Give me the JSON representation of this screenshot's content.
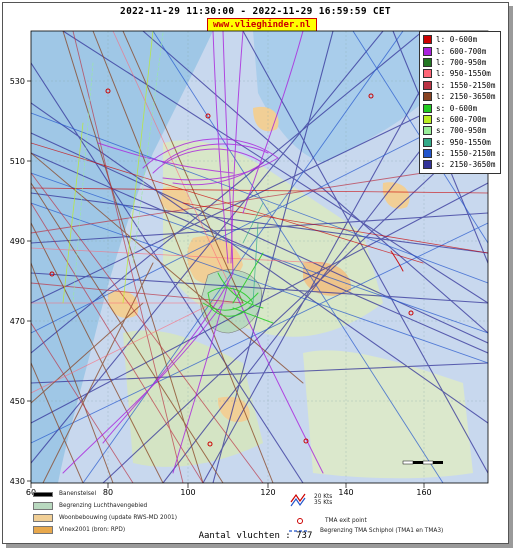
{
  "header": {
    "timestamp": "2022-11-29 11:30:00 - 2022-11-29 16:59:59 CET",
    "site": "www.vlieghinder.nl"
  },
  "axes": {
    "x_ticks": [
      "60",
      "80",
      "100",
      "120",
      "140",
      "160"
    ],
    "y_ticks": [
      "530",
      "510",
      "490",
      "470",
      "450",
      "430"
    ]
  },
  "legend": {
    "items": [
      {
        "label": "l: 0-600m",
        "color": "#cc0000"
      },
      {
        "label": "l: 600-700m",
        "color": "#aa22dd"
      },
      {
        "label": "l: 700-950m",
        "color": "#227722"
      },
      {
        "label": "l: 950-1550m",
        "color": "#ff6677"
      },
      {
        "label": "l: 1550-2150m",
        "color": "#bb3344"
      },
      {
        "label": "l: 2150-3650m",
        "color": "#884422"
      },
      {
        "label": "s: 0-600m",
        "color": "#22cc22"
      },
      {
        "label": "s: 600-700m",
        "color": "#bbee22"
      },
      {
        "label": "s: 700-950m",
        "color": "#99ee99"
      },
      {
        "label": "s: 950-1550m",
        "color": "#33aa88"
      },
      {
        "label": "s: 1550-2150m",
        "color": "#2255cc"
      },
      {
        "label": "s: 2150-3650m",
        "color": "#333399"
      }
    ]
  },
  "bottom_legend": {
    "runway": "Banenstelsel",
    "airport_boundary": "Begrenzing Luchthavengebied",
    "housing": "Woonbebouwing (update RWS-MD 2001)",
    "vinex": "Vinex2001 (bron: RPD)",
    "wind_20": "20 Kts",
    "wind_35": "35 Kts",
    "tma_exit": "TMA exit point",
    "tma_boundary": "Begrenzing TMA Schiphol  (TMA1 en TMA3)"
  },
  "footer": {
    "flight_count": "Aantal vluchten : 737"
  }
}
